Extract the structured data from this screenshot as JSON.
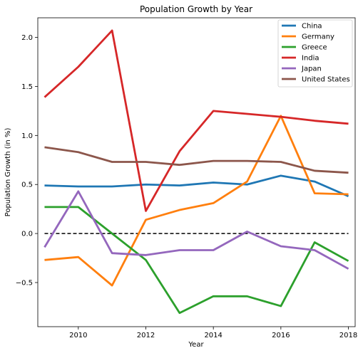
{
  "chart_data": {
    "type": "line",
    "title": "Population Growth by Year",
    "xlabel": "Year",
    "ylabel": "Population Growth (in %)",
    "x": [
      2009,
      2010,
      2011,
      2012,
      2013,
      2014,
      2015,
      2016,
      2017,
      2018
    ],
    "xlim": [
      2008.8,
      2018.2
    ],
    "ylim": [
      -0.95,
      2.2
    ],
    "xticks": [
      2010,
      2012,
      2014,
      2016,
      2018
    ],
    "yticks": [
      -0.5,
      0.0,
      0.5,
      1.0,
      1.5,
      2.0
    ],
    "ytick_labels": [
      "−0.5",
      "0.0",
      "0.5",
      "1.0",
      "1.5",
      "2.0"
    ],
    "reference_line": {
      "y": 0,
      "style": "dashed",
      "color": "#000000"
    },
    "grid": false,
    "legend_position": "top-right",
    "series": [
      {
        "name": "China",
        "color": "#1f77b4",
        "values": [
          0.49,
          0.48,
          0.48,
          0.5,
          0.49,
          0.52,
          0.5,
          0.59,
          0.53,
          0.38
        ]
      },
      {
        "name": "Germany",
        "color": "#ff7f0e",
        "values": [
          -0.27,
          -0.24,
          -0.53,
          0.14,
          0.24,
          0.31,
          0.53,
          1.2,
          0.41,
          0.4
        ]
      },
      {
        "name": "Greece",
        "color": "#2ca02c",
        "values": [
          0.27,
          0.27,
          0.0,
          -0.27,
          -0.81,
          -0.64,
          -0.64,
          -0.74,
          -0.09,
          -0.28
        ]
      },
      {
        "name": "India",
        "color": "#d62728",
        "values": [
          1.39,
          1.7,
          2.07,
          0.23,
          0.84,
          1.25,
          1.22,
          1.19,
          1.15,
          1.12
        ]
      },
      {
        "name": "Japan",
        "color": "#9467bd",
        "values": [
          -0.14,
          0.43,
          -0.2,
          -0.22,
          -0.17,
          -0.17,
          0.02,
          -0.13,
          -0.17,
          -0.36
        ]
      },
      {
        "name": "United States",
        "color": "#8c564b",
        "values": [
          0.88,
          0.83,
          0.73,
          0.73,
          0.7,
          0.74,
          0.74,
          0.73,
          0.64,
          0.62
        ]
      }
    ]
  }
}
